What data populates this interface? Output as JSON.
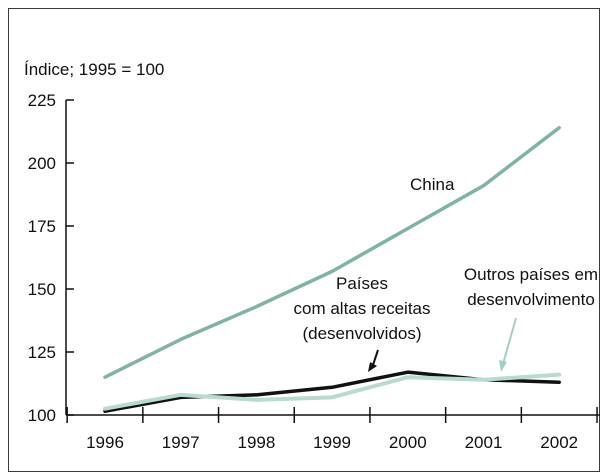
{
  "chart_data": {
    "type": "line",
    "ylabel": "Índice; 1995 = 100",
    "categories": [
      "1996",
      "1997",
      "1998",
      "1999",
      "2000",
      "2001",
      "2002"
    ],
    "ylim": [
      100,
      225
    ],
    "yticks": [
      "100",
      "125",
      "150",
      "175",
      "200",
      "225"
    ],
    "grid": false,
    "series": [
      {
        "name": "China",
        "color": "#7fb5a0",
        "values": [
          115,
          130,
          143,
          157,
          174,
          191,
          214
        ]
      },
      {
        "name": "Países com altas receitas (desenvolvidos)",
        "color": "#111111",
        "values": [
          101.5,
          107,
          108,
          111,
          117,
          114,
          113
        ]
      },
      {
        "name": "Outros países em desenvolvimento",
        "color": "#b8dbcf",
        "values": [
          102.5,
          108,
          106,
          107,
          115,
          114,
          116
        ]
      }
    ],
    "annotations": {
      "china": "China",
      "developed_line1": "Países",
      "developed_line2": "com altas receitas",
      "developed_line3": "(desenvolvidos)",
      "others_line1": "Outros países em",
      "others_line2": "desenvolvimento"
    }
  }
}
